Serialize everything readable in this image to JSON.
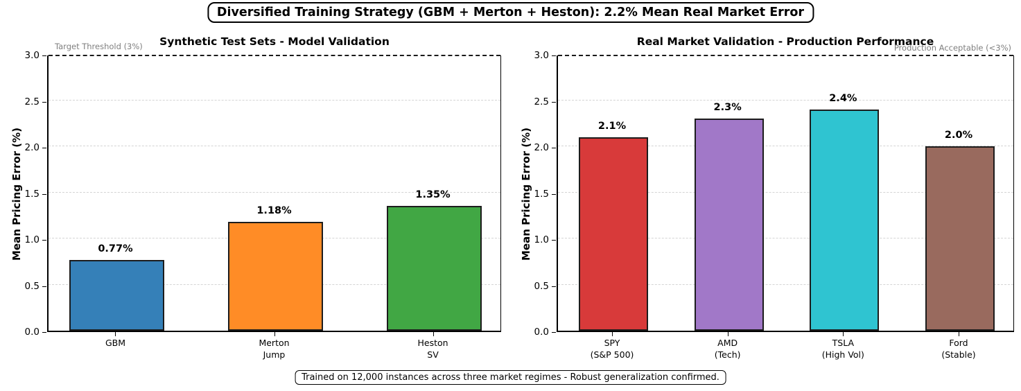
{
  "header": {
    "title": "Diversified Training Strategy (GBM + Merton + Heston): 2.2% Mean Real Market Error"
  },
  "footer": {
    "caption": "Trained on 12,000 instances across three market regimes - Robust generalization confirmed."
  },
  "chart_data": [
    {
      "type": "bar",
      "title": "Synthetic Test Sets - Model Validation",
      "ylabel": "Mean Pricing Error (%)",
      "ylim": [
        0.0,
        3.0
      ],
      "yticks": [
        0.0,
        0.5,
        1.0,
        1.5,
        2.0,
        2.5,
        3.0
      ],
      "grid": true,
      "categories": [
        "GBM",
        "Merton\nJump",
        "Heston\nSV"
      ],
      "values": [
        0.77,
        1.18,
        1.35
      ],
      "bar_labels": [
        "0.77%",
        "1.18%",
        "1.35%"
      ],
      "bar_colors": [
        "#3580b8",
        "#ff8c26",
        "#41a744"
      ],
      "bar_edge_color": "#1c1c1c",
      "threshold": {
        "value": 3.0,
        "label": "Target Threshold (3%)",
        "label_align": "left",
        "line_style": "dashed",
        "line_color": "#1a1a1a"
      }
    },
    {
      "type": "bar",
      "title": "Real Market Validation - Production Performance",
      "ylabel": "Mean Pricing Error (%)",
      "ylim": [
        0.0,
        3.0
      ],
      "yticks": [
        0.0,
        0.5,
        1.0,
        1.5,
        2.0,
        2.5,
        3.0
      ],
      "grid": true,
      "categories": [
        "SPY\n(S&P 500)",
        "AMD\n(Tech)",
        "TSLA\n(High Vol)",
        "Ford\n(Stable)"
      ],
      "values": [
        2.1,
        2.3,
        2.4,
        2.0
      ],
      "bar_labels": [
        "2.1%",
        "2.3%",
        "2.4%",
        "2.0%"
      ],
      "bar_colors": [
        "#d83a3a",
        "#a178c8",
        "#2fc4d1",
        "#996a5e"
      ],
      "bar_edge_color": "#1c1c1c",
      "threshold": {
        "value": 3.0,
        "label": "Production Acceptable (<3%)",
        "label_align": "right",
        "line_style": "dashed",
        "line_color": "#1a1a1a"
      }
    }
  ]
}
